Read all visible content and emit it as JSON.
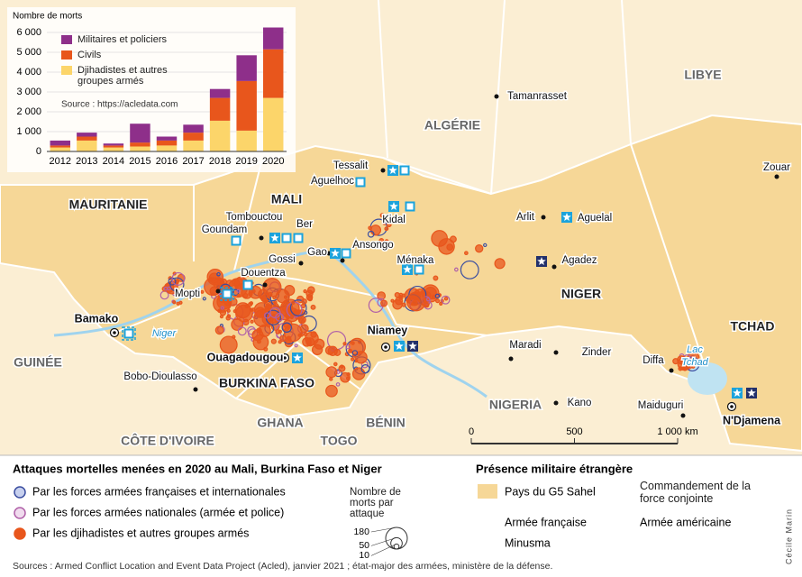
{
  "chart_data": {
    "type": "stacked-bar",
    "y_label": "Nombre de morts",
    "categories": [
      "2012",
      "2013",
      "2014",
      "2015",
      "2016",
      "2017",
      "2018",
      "2019",
      "2020"
    ],
    "series": [
      {
        "name": "Militaires et policiers",
        "color": "#8e2f8a",
        "values": [
          250,
          200,
          100,
          950,
          200,
          400,
          450,
          1300,
          1100
        ]
      },
      {
        "name": "Civils",
        "color": "#e8561c",
        "values": [
          100,
          200,
          100,
          200,
          250,
          400,
          1150,
          2500,
          2450
        ]
      },
      {
        "name": "Djihadistes et autres groupes armés",
        "color": "#fcd56a",
        "values": [
          200,
          550,
          200,
          250,
          300,
          550,
          1550,
          1050,
          2700
        ]
      }
    ],
    "ylim": [
      0,
      6500
    ],
    "yticks": [
      0,
      {
        "value": 1000,
        "label": "1 000"
      },
      {
        "value": 2000,
        "label": "2 000"
      },
      {
        "value": 3000,
        "label": "3 000"
      },
      {
        "value": 4000,
        "label": "4 000"
      },
      {
        "value": 5000,
        "label": "5 000"
      },
      {
        "value": 6000,
        "label": "6 000"
      }
    ],
    "source": "Source : https://acledata.com"
  },
  "map": {
    "labels": [
      "MAURITANIE",
      "MALI",
      "ALGÉRIE",
      "LIBYE",
      "NIGER",
      "TCHAD",
      "BURKINA FASO",
      "GUINÉE",
      "GHANA",
      "TOGO",
      "BÉNIN",
      "NIGERIA",
      "CÔTE D'IVOIRE",
      "Tamanrasset",
      "Zouar",
      "Tessalit",
      "Aguelhoc",
      "Kidal",
      "Tombouctou",
      "Ber",
      "Goundam",
      "Gao",
      "Ansongo",
      "Gossi",
      "Ménaka",
      "Douentza",
      "Mopti",
      "Arlit",
      "Aguelal",
      "Agadez",
      "Bamako",
      "Niamey",
      "Maradi",
      "Zinder",
      "Diffa",
      "Lac",
      "Tchad",
      "Ouagadougou",
      "Bobo-Dioulasso",
      "Kano",
      "Maiduguri",
      "N'Djamena",
      "Niger"
    ]
  },
  "scale": {
    "ticks": [
      0,
      500,
      {
        "value": 1000,
        "label": "1 000 km"
      }
    ]
  },
  "legend": {
    "title": "Attaques mortelles menées en 2020 au Mali, Burkina Faso et Niger",
    "items": [
      "Par les forces armées françaises et internationales",
      "Par les forces armées nationales (armée et police)",
      "Par les djihadistes et autres groupes armés"
    ],
    "size_title": "Nombre de morts par attaque",
    "size_values": [
      180,
      50,
      10
    ]
  },
  "presence": {
    "title": "Présence militaire étrangère",
    "items": [
      "Pays du G5 Sahel",
      "Commandement de la force conjointe",
      "Armée française",
      "Minusma",
      "Armée américaine"
    ]
  },
  "credit": "Cécile Marin",
  "sources": "Sources : Armed Conflict Location and Event Data Project (Acled), janvier 2021 ; état-major des armées, ministère de la défense."
}
